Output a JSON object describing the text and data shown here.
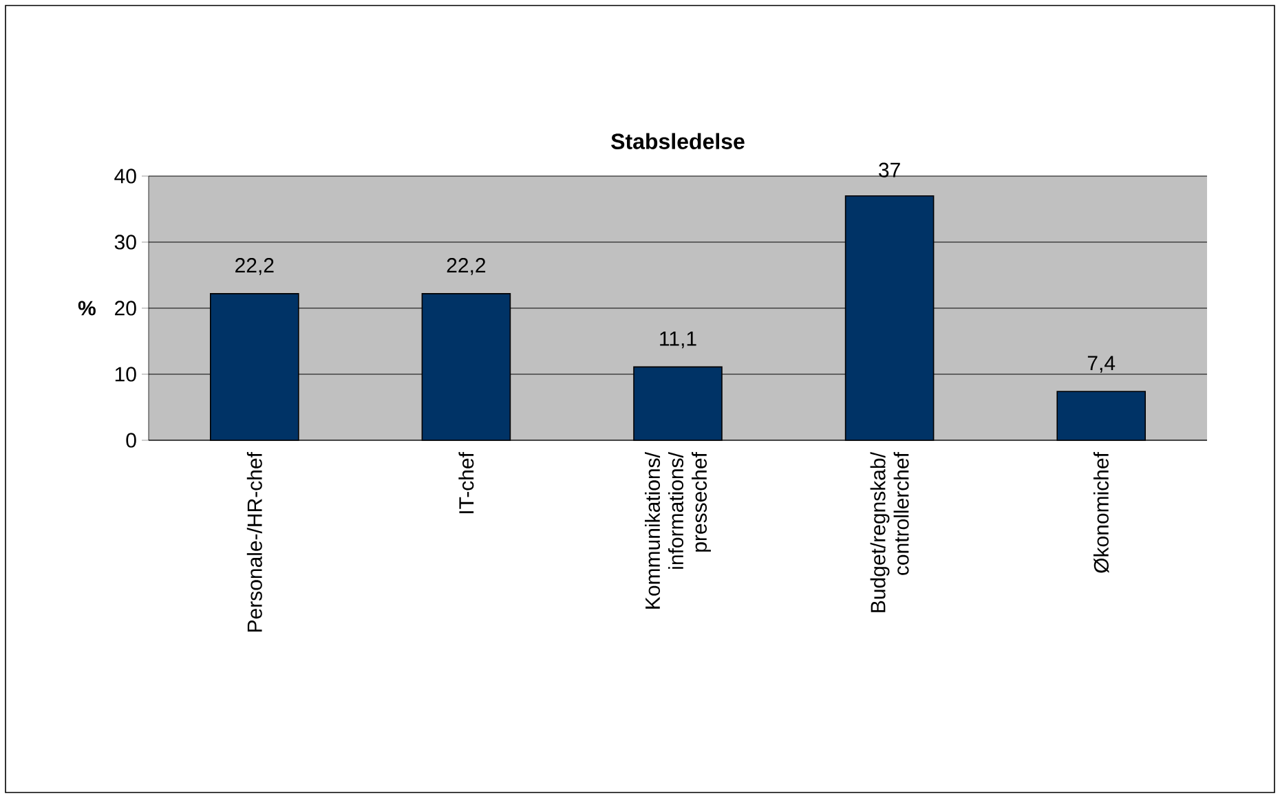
{
  "chart_data": {
    "type": "bar",
    "title": "Stabsledelse",
    "ylabel": "%",
    "categories": [
      "Personale-/HR-chef",
      "IT-chef",
      "Kommunikations/informations/pressechef",
      "Budget/regnskab/controllerchef",
      "Økonomichef"
    ],
    "values": [
      22.2,
      22.2,
      11.1,
      37,
      7.4
    ],
    "value_labels": [
      "22,2",
      "22,2",
      "11,1",
      "37",
      "7,4"
    ],
    "color": "#003366",
    "ylim": [
      0,
      40
    ],
    "yticks": [
      0,
      10,
      20,
      30,
      40
    ],
    "grid": "y"
  }
}
